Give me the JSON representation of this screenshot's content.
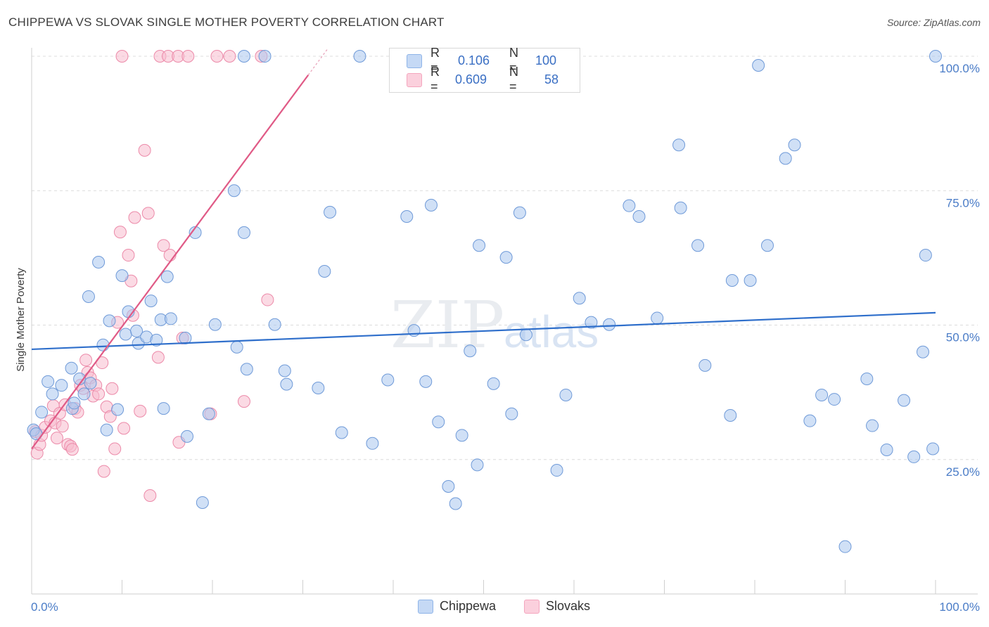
{
  "header": {
    "title": "CHIPPEWA VS SLOVAK SINGLE MOTHER POVERTY CORRELATION CHART",
    "source": "Source: ZipAtlas.com"
  },
  "watermark": {
    "zip": "ZIP",
    "atlas": "atlas"
  },
  "legend": {
    "r_label": "R =",
    "n_label": "N =",
    "rows": [
      {
        "name": "Chippewa",
        "r": "0.106",
        "n": "100",
        "color": "#8fb4e8"
      },
      {
        "name": "Slovaks",
        "r": "0.609",
        "n": "58",
        "color": "#f4a6be"
      }
    ]
  },
  "bottom_legend": {
    "chippewa": "Chippewa",
    "slovaks": "Slovaks"
  },
  "chart_data": {
    "type": "scatter",
    "ylabel": "Single Mother Poverty",
    "xlim": [
      0,
      100
    ],
    "ylim": [
      0,
      100
    ],
    "x_tick_labels": [
      "0.0%",
      "100.0%"
    ],
    "y_ticks": [
      {
        "value": 25,
        "label": "25.0%"
      },
      {
        "value": 50,
        "label": "50.0%"
      },
      {
        "value": 75,
        "label": "75.0%"
      },
      {
        "value": 100,
        "label": "100.0%"
      }
    ],
    "grid": "horizontal dashed",
    "colors": {
      "chippewa_fill": "#aac6ee",
      "chippewa_stroke": "#6f9ad8",
      "chippewa_line": "#2f6fcb",
      "slovaks_fill": "#f7bccd",
      "slovaks_stroke": "#ec8aa9",
      "slovaks_line": "#e05a86"
    },
    "series": [
      {
        "name": "Chippewa",
        "trend": {
          "x": [
            0,
            100
          ],
          "y": [
            45.5,
            52.3
          ]
        },
        "points": [
          [
            0.2,
            30.5
          ],
          [
            0.5,
            29.8
          ],
          [
            1.1,
            33.8
          ],
          [
            1.8,
            39.5
          ],
          [
            2.3,
            37.2
          ],
          [
            3.3,
            38.8
          ],
          [
            4.5,
            34.5
          ],
          [
            4.4,
            42.0
          ],
          [
            4.7,
            35.5
          ],
          [
            5.3,
            40.0
          ],
          [
            5.8,
            37.2
          ],
          [
            6.5,
            39.2
          ],
          [
            6.3,
            55.3
          ],
          [
            7.4,
            61.7
          ],
          [
            7.9,
            46.3
          ],
          [
            8.3,
            30.5
          ],
          [
            8.6,
            50.8
          ],
          [
            9.5,
            34.3
          ],
          [
            10.0,
            59.2
          ],
          [
            10.4,
            48.3
          ],
          [
            10.7,
            52.5
          ],
          [
            11.6,
            48.9
          ],
          [
            11.8,
            46.6
          ],
          [
            12.7,
            47.8
          ],
          [
            13.2,
            54.5
          ],
          [
            13.8,
            47.2
          ],
          [
            14.3,
            51.0
          ],
          [
            14.6,
            34.5
          ],
          [
            15.0,
            59.0
          ],
          [
            15.4,
            51.2
          ],
          [
            17.0,
            47.6
          ],
          [
            17.2,
            29.3
          ],
          [
            18.1,
            67.2
          ],
          [
            18.9,
            17.0
          ],
          [
            19.6,
            33.5
          ],
          [
            20.3,
            50.1
          ],
          [
            22.4,
            75.0
          ],
          [
            22.7,
            45.9
          ],
          [
            23.5,
            67.2
          ],
          [
            23.8,
            41.8
          ],
          [
            23.5,
            100
          ],
          [
            25.8,
            100
          ],
          [
            26.9,
            50.1
          ],
          [
            28.0,
            41.5
          ],
          [
            28.2,
            39.0
          ],
          [
            31.7,
            38.3
          ],
          [
            32.4,
            60.0
          ],
          [
            33.0,
            71.0
          ],
          [
            34.3,
            30.0
          ],
          [
            36.3,
            100
          ],
          [
            37.7,
            28.0
          ],
          [
            39.4,
            39.8
          ],
          [
            41.5,
            70.2
          ],
          [
            42.3,
            49.0
          ],
          [
            43.6,
            39.5
          ],
          [
            44.2,
            72.3
          ],
          [
            45.0,
            32.0
          ],
          [
            46.1,
            20.0
          ],
          [
            46.9,
            16.8
          ],
          [
            47.6,
            29.5
          ],
          [
            48.5,
            45.2
          ],
          [
            49.3,
            24.0
          ],
          [
            49.5,
            64.8
          ],
          [
            51.1,
            39.1
          ],
          [
            52.5,
            62.6
          ],
          [
            53.1,
            33.5
          ],
          [
            54.0,
            70.9
          ],
          [
            54.7,
            48.2
          ],
          [
            58.1,
            23.0
          ],
          [
            59.1,
            37.0
          ],
          [
            60.6,
            55.0
          ],
          [
            61.9,
            50.5
          ],
          [
            63.9,
            50.1
          ],
          [
            66.1,
            72.2
          ],
          [
            67.2,
            70.2
          ],
          [
            69.2,
            51.3
          ],
          [
            71.6,
            83.5
          ],
          [
            71.8,
            71.8
          ],
          [
            73.7,
            64.8
          ],
          [
            74.5,
            42.5
          ],
          [
            77.3,
            33.2
          ],
          [
            77.5,
            58.3
          ],
          [
            79.5,
            58.3
          ],
          [
            80.4,
            98.3
          ],
          [
            81.4,
            64.8
          ],
          [
            83.4,
            81.0
          ],
          [
            84.4,
            83.5
          ],
          [
            86.1,
            32.2
          ],
          [
            87.4,
            37.0
          ],
          [
            88.8,
            36.2
          ],
          [
            90.0,
            8.8
          ],
          [
            92.4,
            40.0
          ],
          [
            93.0,
            31.3
          ],
          [
            94.6,
            26.8
          ],
          [
            96.5,
            36.0
          ],
          [
            97.6,
            25.5
          ],
          [
            98.6,
            45.0
          ],
          [
            99.7,
            27.0
          ],
          [
            100.0,
            100
          ],
          [
            98.9,
            63.0
          ]
        ]
      },
      {
        "name": "Slovaks",
        "trend": {
          "x": [
            0,
            30.6
          ],
          "y": [
            27.0,
            96.5
          ]
        },
        "points": [
          [
            0.4,
            30.2
          ],
          [
            0.6,
            26.2
          ],
          [
            0.9,
            27.8
          ],
          [
            1.1,
            29.5
          ],
          [
            1.5,
            31.0
          ],
          [
            2.1,
            32.2
          ],
          [
            2.4,
            35.0
          ],
          [
            2.6,
            31.8
          ],
          [
            2.8,
            29.0
          ],
          [
            3.1,
            33.6
          ],
          [
            3.4,
            31.2
          ],
          [
            3.7,
            35.2
          ],
          [
            4.0,
            27.8
          ],
          [
            4.3,
            27.5
          ],
          [
            4.5,
            26.9
          ],
          [
            4.8,
            34.5
          ],
          [
            5.1,
            33.8
          ],
          [
            5.4,
            38.8
          ],
          [
            5.7,
            38.2
          ],
          [
            6.0,
            43.5
          ],
          [
            6.2,
            41.2
          ],
          [
            6.5,
            40.2
          ],
          [
            6.8,
            36.8
          ],
          [
            7.1,
            38.8
          ],
          [
            7.4,
            37.2
          ],
          [
            7.8,
            43.0
          ],
          [
            8.0,
            22.8
          ],
          [
            8.3,
            34.8
          ],
          [
            8.7,
            33.0
          ],
          [
            8.9,
            38.2
          ],
          [
            9.2,
            27.0
          ],
          [
            9.5,
            50.5
          ],
          [
            9.8,
            67.3
          ],
          [
            10.2,
            30.8
          ],
          [
            10.7,
            63.0
          ],
          [
            11.0,
            58.2
          ],
          [
            11.4,
            70.0
          ],
          [
            12.0,
            34.0
          ],
          [
            12.5,
            82.5
          ],
          [
            12.9,
            70.8
          ],
          [
            13.1,
            18.3
          ],
          [
            14.0,
            44.0
          ],
          [
            14.6,
            64.8
          ],
          [
            15.3,
            63.0
          ],
          [
            16.3,
            28.2
          ],
          [
            16.7,
            47.6
          ],
          [
            19.8,
            33.5
          ],
          [
            23.5,
            35.8
          ],
          [
            26.1,
            54.7
          ],
          [
            10.0,
            100
          ],
          [
            14.2,
            100
          ],
          [
            15.1,
            100
          ],
          [
            16.2,
            100
          ],
          [
            17.3,
            100
          ],
          [
            20.5,
            100
          ],
          [
            21.9,
            100
          ],
          [
            25.4,
            100
          ],
          [
            11.2,
            51.8
          ]
        ]
      }
    ]
  }
}
